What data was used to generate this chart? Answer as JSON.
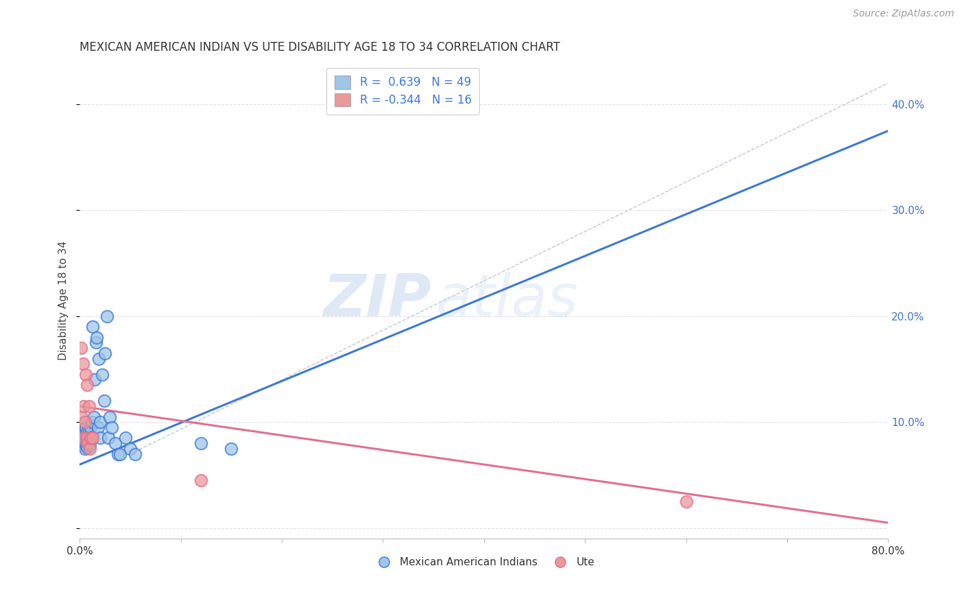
{
  "title": "MEXICAN AMERICAN INDIAN VS UTE DISABILITY AGE 18 TO 34 CORRELATION CHART",
  "source": "Source: ZipAtlas.com",
  "ylabel": "Disability Age 18 to 34",
  "xlim": [
    0.0,
    0.8
  ],
  "ylim": [
    -0.01,
    0.44
  ],
  "xticks": [
    0.0,
    0.1,
    0.2,
    0.3,
    0.4,
    0.5,
    0.6,
    0.7,
    0.8
  ],
  "xticklabels": [
    "0.0%",
    "",
    "",
    "",
    "",
    "",
    "",
    "",
    "80.0%"
  ],
  "yticks_right": [
    0.0,
    0.1,
    0.2,
    0.3,
    0.4
  ],
  "yticklabels_right": [
    "",
    "10.0%",
    "20.0%",
    "30.0%",
    "40.0%"
  ],
  "legend_r1": "R =  0.639   N = 49",
  "legend_r2": "R = -0.344   N = 16",
  "blue_color": "#9fc5e8",
  "pink_color": "#ea9999",
  "line_blue": "#3c78d8",
  "line_pink": "#e07090",
  "dashed_line_color": "#b0b8c8",
  "watermark_zip": "ZIP",
  "watermark_atlas": "atlas",
  "blue_scatter_x": [
    0.001,
    0.002,
    0.002,
    0.003,
    0.003,
    0.004,
    0.004,
    0.005,
    0.005,
    0.005,
    0.006,
    0.006,
    0.006,
    0.007,
    0.007,
    0.007,
    0.008,
    0.008,
    0.009,
    0.009,
    0.01,
    0.01,
    0.011,
    0.012,
    0.012,
    0.013,
    0.014,
    0.015,
    0.016,
    0.017,
    0.018,
    0.019,
    0.02,
    0.02,
    0.022,
    0.024,
    0.025,
    0.027,
    0.028,
    0.03,
    0.032,
    0.035,
    0.038,
    0.04,
    0.045,
    0.05,
    0.055,
    0.12,
    0.15
  ],
  "blue_scatter_y": [
    0.085,
    0.08,
    0.088,
    0.082,
    0.09,
    0.078,
    0.092,
    0.075,
    0.083,
    0.093,
    0.086,
    0.079,
    0.095,
    0.084,
    0.076,
    0.091,
    0.08,
    0.087,
    0.083,
    0.092,
    0.078,
    0.088,
    0.095,
    0.086,
    0.1,
    0.19,
    0.105,
    0.14,
    0.175,
    0.18,
    0.095,
    0.16,
    0.1,
    0.085,
    0.145,
    0.12,
    0.165,
    0.2,
    0.085,
    0.105,
    0.095,
    0.08,
    0.07,
    0.07,
    0.085,
    0.075,
    0.07,
    0.08,
    0.075
  ],
  "pink_scatter_x": [
    0.001,
    0.002,
    0.003,
    0.003,
    0.004,
    0.005,
    0.006,
    0.007,
    0.007,
    0.008,
    0.009,
    0.01,
    0.011,
    0.013,
    0.12,
    0.6
  ],
  "pink_scatter_y": [
    0.17,
    0.105,
    0.085,
    0.155,
    0.115,
    0.1,
    0.145,
    0.085,
    0.135,
    0.08,
    0.115,
    0.075,
    0.085,
    0.085,
    0.045,
    0.025
  ],
  "blue_trendline_x": [
    0.0,
    0.8
  ],
  "blue_trendline_y": [
    0.06,
    0.375
  ],
  "pink_trendline_x": [
    0.0,
    0.8
  ],
  "pink_trendline_y": [
    0.115,
    0.005
  ],
  "dashed_line_x": [
    0.05,
    0.8
  ],
  "dashed_line_y": [
    0.07,
    0.42
  ],
  "grid_color": "#e0e0e8",
  "background_color": "#ffffff",
  "title_color": "#333333",
  "label_color": "#444444",
  "axis_color": "#4472c4",
  "tick_color": "#bbbbbb"
}
